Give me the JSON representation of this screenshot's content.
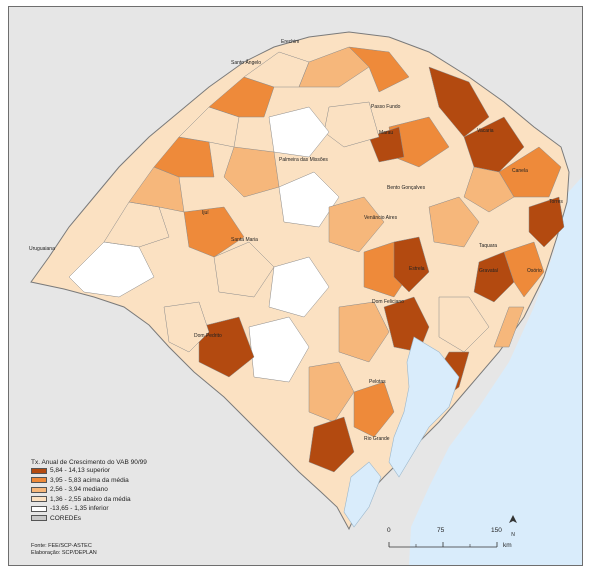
{
  "map": {
    "legend": {
      "title": "Tx. Anual de Crescimento do VAB 90/99",
      "classes": [
        {
          "label": "5,84 - 14,13  superior",
          "color": "#b34a10"
        },
        {
          "label": "3,95 - 5,83  acima da média",
          "color": "#ee8a3a"
        },
        {
          "label": "2,56 - 3,94  mediano",
          "color": "#f6b77b"
        },
        {
          "label": "1,36 - 2,55  abaixo da média",
          "color": "#fbe1c2"
        },
        {
          "label": "-13,65 - 1,35  inferior",
          "color": "#ffffff"
        },
        {
          "label": "COREDEs",
          "color": "#c8c8c8"
        }
      ]
    },
    "source": [
      "Fonte: FEE/SCP-ASTEC",
      "Elaboração: SCP/DEPLAN"
    ],
    "scale": {
      "ticks": [
        "0",
        "75",
        "150"
      ],
      "unit": "km"
    },
    "north": "N",
    "cities": [
      "Erechim",
      "Santo Ângelo",
      "Passo Fundo",
      "Marau",
      "Vacaria",
      "Palmeira das Missões",
      "Canela",
      "Bento Gonçalves",
      "Torres",
      "Ijuí",
      "Venâncio Aires",
      "Uruguaiana",
      "Santa Maria",
      "Taquara",
      "Estrela",
      "Gravataí",
      "Osório",
      "Dom Feliciano",
      "Dom Pedrito",
      "Pelotas",
      "Rio Grande"
    ],
    "colors": {
      "ocean": "#d9ecfb",
      "lagoon": "#d9ecfb",
      "background": "#e6e6e6",
      "border": "#7a7a7a"
    }
  }
}
